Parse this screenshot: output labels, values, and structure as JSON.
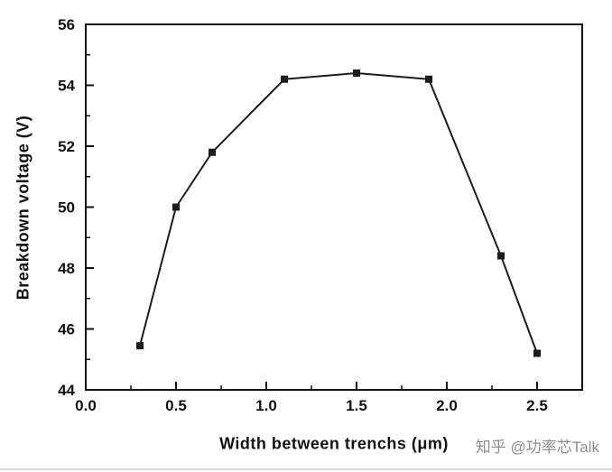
{
  "watermark": {
    "text": "知乎 @功率芯Talk"
  },
  "chart_data": {
    "type": "line",
    "x": [
      0.3,
      0.5,
      0.7,
      1.1,
      1.5,
      1.9,
      2.3,
      2.5
    ],
    "y": [
      45.45,
      50.0,
      51.8,
      54.2,
      54.4,
      54.2,
      48.4,
      45.2
    ],
    "title": "",
    "xlabel": "Width between trenchs (μm)",
    "ylabel": "Breakdown voltage (V)",
    "xlim": [
      0.0,
      2.75
    ],
    "ylim": [
      44,
      56
    ],
    "xticks": [
      0.0,
      0.5,
      1.0,
      1.5,
      2.0,
      2.5
    ],
    "yticks": [
      44,
      46,
      48,
      50,
      52,
      54,
      56
    ],
    "x_minor_step": 0.25,
    "y_minor_step": 1,
    "line_color": "#1c1c1c",
    "marker": "square",
    "grid": false,
    "legend": null
  }
}
